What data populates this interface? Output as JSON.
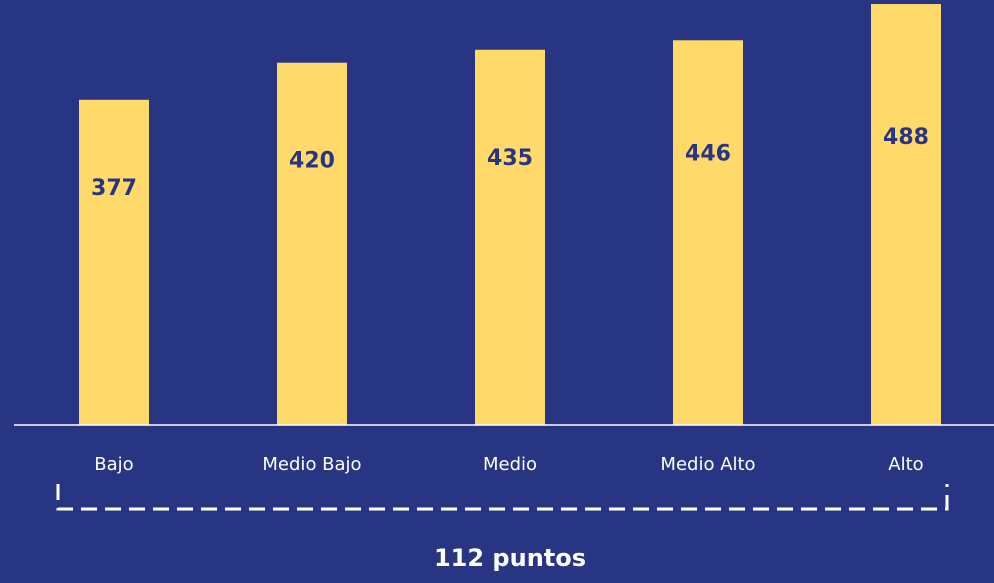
{
  "colors": {
    "background": "#283583",
    "bar": "#FFDA6A",
    "value_text": "#283583",
    "axis": "#FFFFFF",
    "label_text": "#FFFFFF"
  },
  "chart_data": {
    "type": "bar",
    "categories": [
      "Bajo",
      "Medio Bajo",
      "Medio",
      "Medio Alto",
      "Alto"
    ],
    "values": [
      377,
      420,
      435,
      446,
      488
    ],
    "title": "",
    "xlabel": "",
    "ylabel": "",
    "ylim": [
      0,
      490
    ],
    "grid": false,
    "legend": "none",
    "data_labels": [
      "377",
      "420",
      "435",
      "446",
      "488"
    ],
    "annotation": {
      "type": "bracket",
      "from": "Bajo",
      "to": "Alto",
      "text": "112 puntos"
    }
  }
}
